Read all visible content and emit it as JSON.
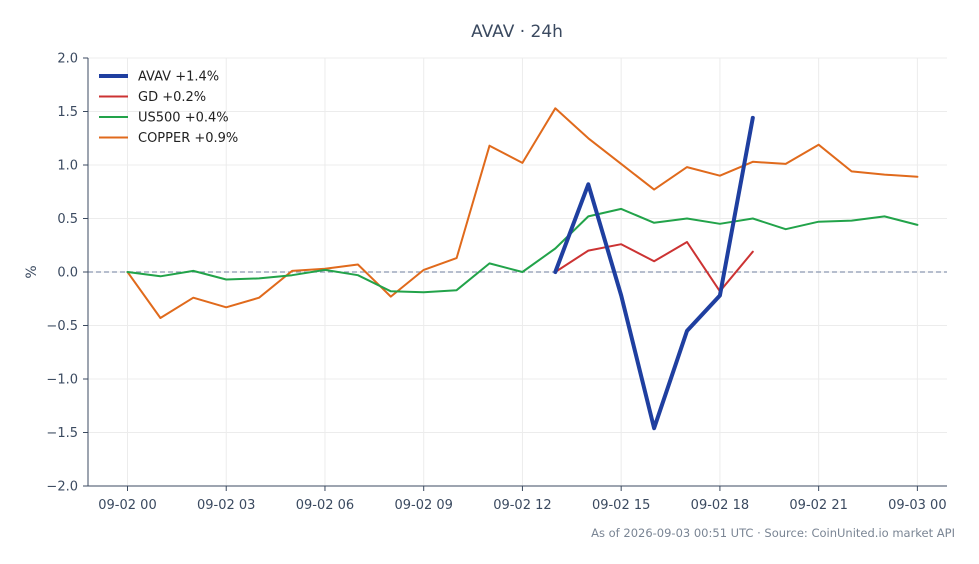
{
  "chart_data": {
    "type": "line",
    "title": "AVAV · 24h",
    "xlabel": "",
    "ylabel": "%",
    "ylim": [
      -2.0,
      2.0
    ],
    "xlim_hours": [
      -1.2,
      24.9
    ],
    "y_ticks": [
      2.0,
      1.5,
      1.0,
      0.5,
      0.0,
      -0.5,
      -1.0,
      -1.5,
      -2.0
    ],
    "y_tick_labels": [
      "2.0",
      "1.5",
      "1.0",
      "0.5",
      "0.0",
      "−0.5",
      "−1.0",
      "−1.5",
      "−2.0"
    ],
    "x_ticks": [
      0,
      3,
      6,
      9,
      12,
      15,
      18,
      21,
      24
    ],
    "x_tick_labels": [
      "09-02 00",
      "09-02 03",
      "09-02 06",
      "09-02 09",
      "09-02 12",
      "09-02 15",
      "09-02 18",
      "09-02 21",
      "09-03 00"
    ],
    "grid": true,
    "baseline": 0.0,
    "legend_position": "top-left",
    "series": [
      {
        "name": "AVAV +1.4%",
        "color": "#1f3fa0",
        "width": 4,
        "x": [
          13,
          14,
          15,
          16,
          17,
          18,
          19
        ],
        "y": [
          0.0,
          0.82,
          -0.22,
          -1.46,
          -0.55,
          -0.22,
          1.44
        ]
      },
      {
        "name": "GD +0.2%",
        "color": "#cc3333",
        "width": 2,
        "x": [
          13,
          14,
          15,
          16,
          17,
          18,
          19
        ],
        "y": [
          0.0,
          0.2,
          0.26,
          0.1,
          0.28,
          -0.18,
          0.19
        ]
      },
      {
        "name": "US500 +0.4%",
        "color": "#22a34a",
        "width": 2,
        "x": [
          0,
          1,
          2,
          3,
          4,
          5,
          6,
          7,
          8,
          9,
          10,
          11,
          12,
          13,
          14,
          15,
          16,
          17,
          18,
          19,
          20,
          21,
          22,
          23,
          24
        ],
        "y": [
          0.0,
          -0.04,
          0.01,
          -0.07,
          -0.06,
          -0.03,
          0.02,
          -0.03,
          -0.18,
          -0.19,
          -0.17,
          0.08,
          0.0,
          0.22,
          0.52,
          0.59,
          0.46,
          0.5,
          0.45,
          0.5,
          0.4,
          0.47,
          0.48,
          0.52,
          0.44
        ]
      },
      {
        "name": "COPPER +0.9%",
        "color": "#e06a1c",
        "width": 2,
        "x": [
          0,
          1,
          2,
          3,
          4,
          5,
          6,
          7,
          8,
          9,
          10,
          11,
          12,
          13,
          14,
          15,
          16,
          17,
          18,
          19,
          20,
          21,
          22,
          23,
          24
        ],
        "y": [
          0.0,
          -0.43,
          -0.24,
          -0.33,
          -0.24,
          0.01,
          0.03,
          0.07,
          -0.23,
          0.02,
          0.13,
          1.18,
          1.02,
          1.53,
          1.25,
          1.01,
          0.77,
          0.98,
          0.9,
          1.03,
          1.01,
          1.19,
          0.94,
          0.91,
          0.89
        ]
      }
    ],
    "footer": "As of 2026-09-03 00:51 UTC · Source: CoinUnited.io market API"
  }
}
